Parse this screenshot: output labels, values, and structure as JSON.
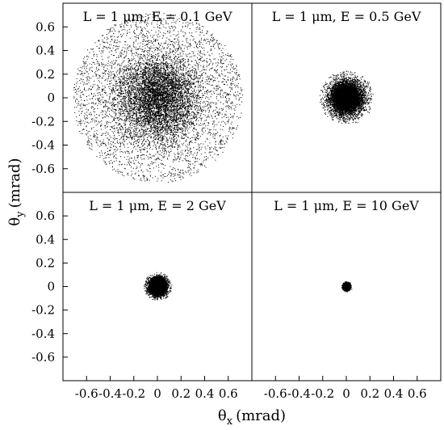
{
  "chart_data": {
    "type": "scatter",
    "xlabel": "θ",
    "xlabel_sub": "x",
    "xlabel_unit": "(mrad)",
    "ylabel": "θ",
    "ylabel_sub": "y",
    "ylabel_unit": "(mrad)",
    "xlim": [
      -0.8,
      0.8
    ],
    "ylim": [
      -0.8,
      0.8
    ],
    "x_ticks": [
      -0.6,
      -0.4,
      -0.2,
      0,
      0.2,
      0.4,
      0.6
    ],
    "x_tick_labels": [
      "-0.6",
      "-0.4",
      "-0.2",
      "0",
      "0.2",
      "0.4",
      "0.6"
    ],
    "y_ticks": [
      -0.6,
      -0.4,
      -0.2,
      0,
      0.2,
      0.4,
      0.6
    ],
    "y_tick_labels": [
      "-0.6",
      "-0.4",
      "-0.2",
      "0",
      "0.2",
      "0.4",
      "0.6"
    ],
    "grid": false,
    "point_color": "#000000",
    "panels": [
      {
        "title": "L = 1 μm, E = 0.1 GeV",
        "spread_sigma": 0.18,
        "max_radius": 0.72,
        "points": 9000
      },
      {
        "title": "L = 1 μm, E = 0.5 GeV",
        "spread_sigma": 0.07,
        "max_radius": 0.23,
        "points": 8000
      },
      {
        "title": "L = 1 μm, E = 2 GeV",
        "spread_sigma": 0.035,
        "max_radius": 0.12,
        "points": 7000
      },
      {
        "title": "L = 1 μm, E = 10 GeV",
        "spread_sigma": 0.012,
        "max_radius": 0.055,
        "points": 6000
      }
    ]
  }
}
